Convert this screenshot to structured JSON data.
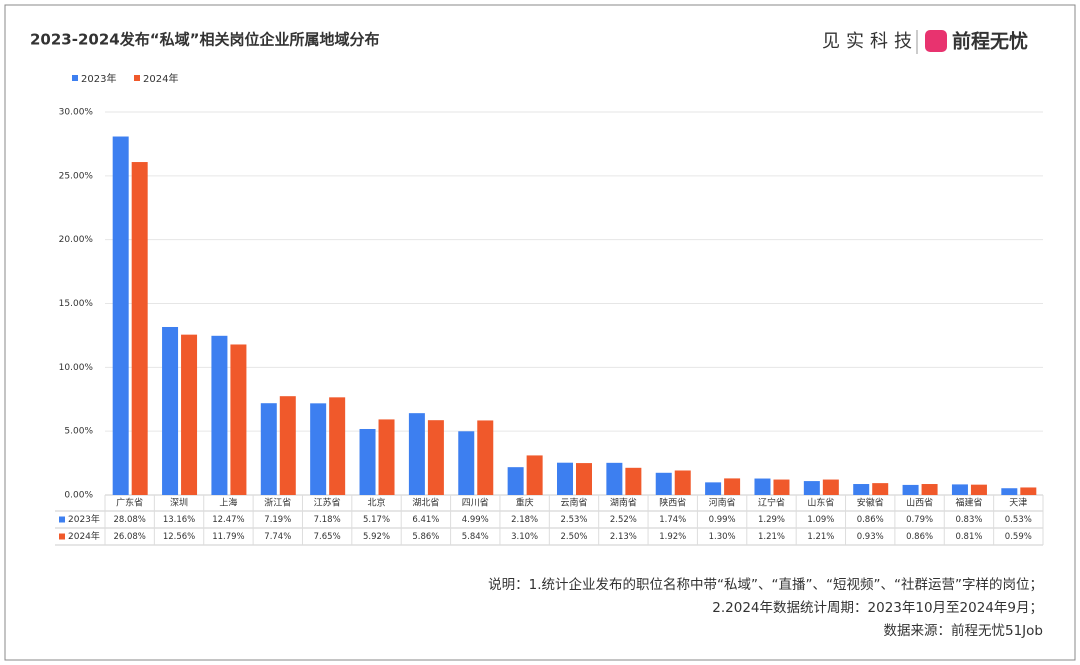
{
  "chart_data": {
    "type": "bar",
    "title": "2023-2024发布“私域”相关岗位企业所属地域分布",
    "brand": {
      "left": "见实科技",
      "right": "前程无忧"
    },
    "categories": [
      "广东省",
      "深圳",
      "上海",
      "浙江省",
      "江苏省",
      "北京",
      "湖北省",
      "四川省",
      "重庆",
      "云南省",
      "湖南省",
      "陕西省",
      "河南省",
      "辽宁省",
      "山东省",
      "安徽省",
      "山西省",
      "福建省",
      "天津"
    ],
    "series": [
      {
        "name": "2023年",
        "color": "#3d7ff0",
        "values": [
          28.08,
          13.16,
          12.47,
          7.19,
          7.18,
          5.17,
          6.41,
          4.99,
          2.18,
          2.53,
          2.52,
          1.74,
          0.99,
          1.29,
          1.09,
          0.86,
          0.79,
          0.83,
          0.53
        ],
        "value_labels": [
          "28.08%",
          "13.16%",
          "12.47%",
          "7.19%",
          "7.18%",
          "5.17%",
          "6.41%",
          "4.99%",
          "2.18%",
          "2.53%",
          "2.52%",
          "1.74%",
          "0.99%",
          "1.29%",
          "1.09%",
          "0.86%",
          "0.79%",
          "0.83%",
          "0.53%"
        ]
      },
      {
        "name": "2024年",
        "color": "#f0592b",
        "values": [
          26.08,
          12.56,
          11.79,
          7.74,
          7.65,
          5.92,
          5.86,
          5.84,
          3.1,
          2.5,
          2.13,
          1.92,
          1.3,
          1.21,
          1.21,
          0.93,
          0.86,
          0.81,
          0.59
        ],
        "value_labels": [
          "26.08%",
          "12.56%",
          "11.79%",
          "7.74%",
          "7.65%",
          "5.92%",
          "5.86%",
          "5.84%",
          "3.10%",
          "2.50%",
          "2.13%",
          "1.92%",
          "1.30%",
          "1.21%",
          "1.21%",
          "0.93%",
          "0.86%",
          "0.81%",
          "0.59%"
        ]
      }
    ],
    "ylim": [
      0,
      30
    ],
    "yticks": [
      {
        "value": 0,
        "label": "0.00%"
      },
      {
        "value": 5,
        "label": "5.00%"
      },
      {
        "value": 10,
        "label": "10.00%"
      },
      {
        "value": 15,
        "label": "15.00%"
      },
      {
        "value": 20,
        "label": "20.00%"
      },
      {
        "value": 25,
        "label": "25.00%"
      },
      {
        "value": 30,
        "label": "30.00%"
      }
    ],
    "grid": true,
    "notes": [
      "说明：1.统计企业发布的职位名称中带“私域”、“直播”、“短视频”、“社群运营”字样的岗位；",
      "2.2024年数据统计周期：2023年10月至2024年9月；",
      "数据来源：前程无忧51Job"
    ]
  }
}
